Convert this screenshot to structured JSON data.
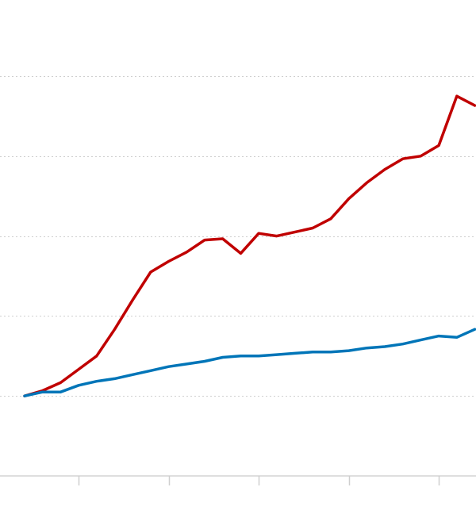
{
  "chart_data": {
    "type": "line",
    "x": [
      0,
      1,
      2,
      3,
      4,
      5,
      6,
      7,
      8,
      9,
      10,
      11,
      12,
      13,
      14,
      15,
      16,
      17,
      18,
      19,
      20,
      21,
      22,
      23,
      24,
      25
    ],
    "series": [
      {
        "color": "#c00000",
        "values": [
          0,
          4,
          10,
          20,
          30,
          50,
          72,
          93,
          101,
          108,
          117,
          118,
          107,
          122,
          120,
          123,
          126,
          133,
          148,
          160,
          170,
          178,
          180,
          188,
          225,
          218
        ]
      },
      {
        "color": "#0075b8",
        "values": [
          0,
          3,
          3,
          8,
          11,
          13,
          16,
          19,
          22,
          24,
          26,
          29,
          30,
          30,
          31,
          32,
          33,
          33,
          34,
          36,
          37,
          39,
          42,
          45,
          44,
          50
        ]
      }
    ],
    "ylim": [
      -60,
      240
    ],
    "y_gridlines": [
      0,
      60,
      120,
      180,
      240
    ],
    "x_ticks": [
      3,
      8,
      13,
      18,
      23
    ],
    "grid": true,
    "legend": "none"
  }
}
